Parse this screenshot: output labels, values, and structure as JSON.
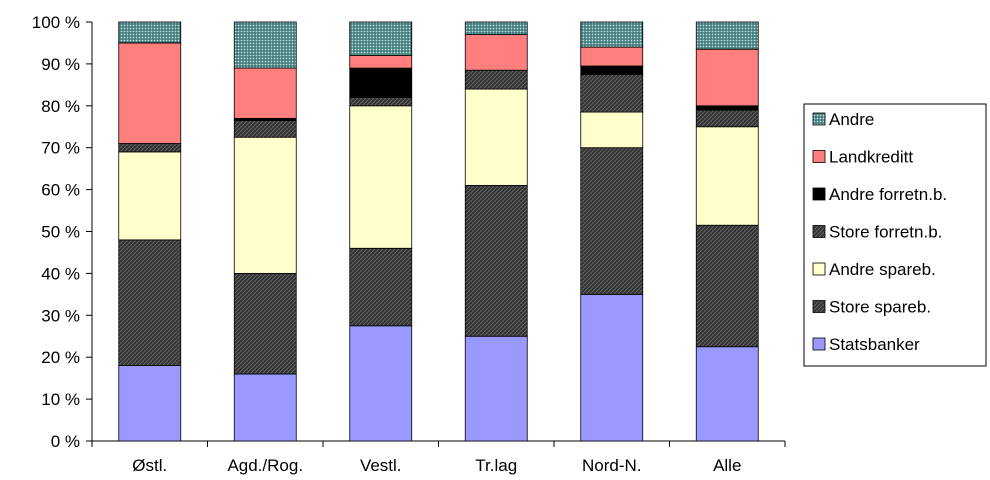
{
  "chart_data": {
    "type": "bar",
    "stacked": true,
    "percent": true,
    "title": "",
    "xlabel": "",
    "ylabel": "",
    "ylim": [
      0,
      100
    ],
    "y_ticks": [
      "0 %",
      "10 %",
      "20 %",
      "30 %",
      "40 %",
      "50 %",
      "60 %",
      "70 %",
      "80 %",
      "90 %",
      "100 %"
    ],
    "categories": [
      "Østl.",
      "Agd./Rog.",
      "Vestl.",
      "Tr.lag",
      "Nord-N.",
      "Alle"
    ],
    "legend_position": "right",
    "series": [
      {
        "name": "Statsbanker",
        "color": "#9999ff",
        "pattern": "solid",
        "values": [
          18,
          16,
          27.5,
          25,
          35,
          22.5
        ]
      },
      {
        "name": "Store spareb.",
        "color": "#333333",
        "pattern": "dark-hatch",
        "values": [
          30,
          24,
          18.5,
          36,
          35,
          29
        ]
      },
      {
        "name": "Andre spareb.",
        "color": "#ffffcc",
        "pattern": "solid",
        "values": [
          21,
          32.5,
          34,
          23,
          8.5,
          23.5
        ]
      },
      {
        "name": "Store forretn.b.",
        "color": "#333333",
        "pattern": "dark-hatch",
        "values": [
          2,
          4,
          2,
          4.5,
          9,
          4
        ]
      },
      {
        "name": "Andre forretn.b.",
        "color": "#000000",
        "pattern": "solid",
        "values": [
          0,
          0.5,
          7,
          0,
          2,
          1
        ]
      },
      {
        "name": "Landkreditt",
        "color": "#ff7f7f",
        "pattern": "solid",
        "values": [
          24,
          12,
          3,
          8.5,
          4.5,
          13.5
        ]
      },
      {
        "name": "Andre",
        "color": "#66aaaa",
        "pattern": "grid",
        "values": [
          5,
          11,
          8,
          3,
          6,
          6.5
        ]
      }
    ]
  }
}
